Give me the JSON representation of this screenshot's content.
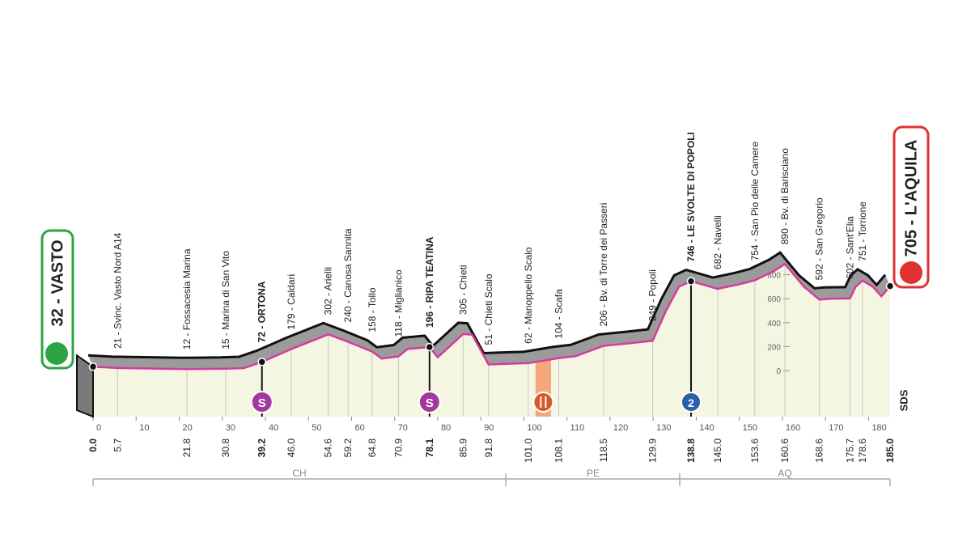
{
  "start": {
    "label": "32 - VASTO",
    "km": {
      "value": 0,
      "label": "0.0"
    }
  },
  "finish": {
    "label": "705 - L'AQUILA",
    "km": {
      "value": 185,
      "label": "185.0"
    }
  },
  "waypoints": [
    {
      "label": "21 - Svinc. Vasto Nord A14",
      "km": 5.7
    },
    {
      "label": "12 - Fossacesia Marina",
      "km": 21.8
    },
    {
      "label": "15 - Marina di San Vito",
      "km": 30.8
    },
    {
      "label": "72 - ORTONA",
      "km": 39.2,
      "bold": true
    },
    {
      "label": "179 - Caldari",
      "km": {
        "value": 46,
        "label": "46.0"
      }
    },
    {
      "label": "302 - Arielli",
      "km": 54.6
    },
    {
      "label": "240 - Canosa Sannita",
      "km": 59.2
    },
    {
      "label": "158 - Tollo",
      "km": 64.8
    },
    {
      "label": "118 - Miglianico",
      "km": 70.9
    },
    {
      "label": "196 - RIPA TEATINA",
      "km": 78.1,
      "bold": true
    },
    {
      "label": "305 - Chieti",
      "km": 85.9
    },
    {
      "label": "51 - Chieti Scalo",
      "km": 91.8
    },
    {
      "label": "62 - Manoppello Scalo",
      "km": {
        "value": 101,
        "label": "101.0"
      }
    },
    {
      "label": "104 - Scafa",
      "km": 108.1
    },
    {
      "label": "206 - Bv. di Torre dei Passeri",
      "km": 118.5
    },
    {
      "label": "249 - Popoli",
      "km": 129.9
    },
    {
      "label": "746 - LE SVOLTE DI POPOLI",
      "km": 138.8,
      "bold": true
    },
    {
      "label": "682 - Navelli",
      "km": {
        "value": 145,
        "label": "145.0"
      }
    },
    {
      "label": "754 - San Pio delle Camere",
      "km": 153.6
    },
    {
      "label": "890 - Bv. di Barisciano",
      "km": 160.6
    },
    {
      "label": "592 - San Gregorio",
      "km": 168.6
    },
    {
      "label": "602 - Sant'Elia",
      "km": 175.7
    },
    {
      "label": "751 - Torrione",
      "km": 178.6
    }
  ],
  "km_ticks": [
    0,
    10,
    20,
    30,
    40,
    50,
    60,
    70,
    80,
    90,
    100,
    110,
    120,
    130,
    140,
    150,
    160,
    170,
    180
  ],
  "altitude_ticks": [
    0,
    200,
    400,
    600,
    800
  ],
  "profile": {
    "km": [
      0,
      5.7,
      21.8,
      30.8,
      35,
      39.2,
      46,
      54.6,
      59.2,
      64.8,
      67,
      70.9,
      73,
      78.1,
      80,
      85.9,
      88,
      91.8,
      101,
      108.1,
      112,
      118.5,
      125,
      129.9,
      133,
      136,
      138.8,
      145,
      150,
      153.6,
      158,
      160.6,
      165,
      168.6,
      171,
      175.7,
      177,
      178.6,
      181,
      183,
      185
    ],
    "altitude": [
      32,
      21,
      12,
      15,
      20,
      72,
      179,
      302,
      240,
      158,
      100,
      118,
      180,
      196,
      110,
      305,
      300,
      51,
      62,
      104,
      120,
      206,
      230,
      249,
      500,
      700,
      746,
      682,
      720,
      754,
      830,
      890,
      700,
      592,
      600,
      602,
      700,
      751,
      700,
      620,
      705
    ]
  },
  "regions": [
    "CH",
    "PE",
    "AQ"
  ],
  "icons": {
    "sprint": "S",
    "kom": "2"
  },
  "logo": "SDS"
}
